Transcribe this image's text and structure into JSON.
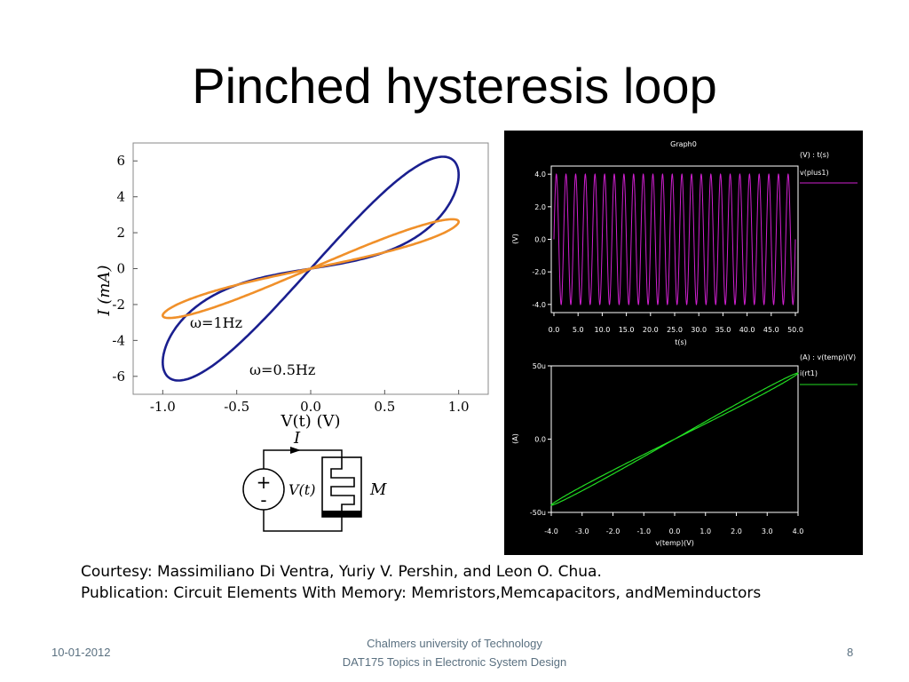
{
  "slide": {
    "title": "Pinched hysteresis loop",
    "courtesy_line1": "Courtesy: Massimiliano Di Ventra, Yuriy V. Pershin, and Leon O. Chua.",
    "courtesy_line2": "Publication: Circuit Elements With Memory: Memristors,Memcapacitors, andMeminductors",
    "footer_date": "10-01-2012",
    "footer_line1": "Chalmers university of Technology",
    "footer_line2": "DAT175 Topics in Electronic System Design",
    "page_number": "8"
  },
  "chart_data": [
    {
      "type": "line",
      "xlabel": "V(t) (V)",
      "ylabel": "I (mA)",
      "xlim": [
        -1.2,
        1.2
      ],
      "ylim": [
        -7,
        7
      ],
      "x_ticks": [
        "-1.0",
        "-0.5",
        "0.0",
        "0.5",
        "1.0"
      ],
      "y_ticks": [
        "6",
        "4",
        "2",
        "0",
        "-2",
        "-4",
        "-6"
      ],
      "series": [
        {
          "name": "ω=0.5Hz",
          "color": "#1a1f8f",
          "amplitude_V": 1.0,
          "peak_current_mA": 5.8
        },
        {
          "name": "ω=1Hz",
          "color": "#f0902a",
          "amplitude_V": 1.0,
          "peak_current_mA": 2.9
        }
      ],
      "annotations": [
        "ω=1Hz",
        "ω=0.5Hz"
      ]
    },
    {
      "type": "diagram",
      "labels": {
        "current": "I",
        "source": "V(t)",
        "element": "M",
        "plus": "+",
        "minus": "-"
      }
    },
    {
      "type": "line",
      "title": "Graph0",
      "legend_header": "(V) : t(s)",
      "legend_entry": "v(plus1)",
      "xlabel": "t(s)",
      "ylabel": "(V)",
      "xlim": [
        0,
        50
      ],
      "ylim": [
        -4.5,
        4.5
      ],
      "x_ticks": [
        "0.0",
        "5.0",
        "10.0",
        "15.0",
        "20.0",
        "25.0",
        "30.0",
        "35.0",
        "40.0",
        "45.0",
        "50.0"
      ],
      "y_ticks": [
        "4.0",
        "2.0",
        "0.0",
        "-2.0",
        "-4.0"
      ],
      "series": [
        {
          "name": "v(plus1)",
          "color": "#d020d0",
          "amplitude": 4.0,
          "cycles": 25
        }
      ]
    },
    {
      "type": "line",
      "legend_header": "(A) : v(temp)(V)",
      "legend_entry": "i(rt1)",
      "xlabel": "v(temp)(V)",
      "ylabel": "(A)",
      "xlim": [
        -4,
        4
      ],
      "ylim": [
        -50,
        50
      ],
      "x_ticks": [
        "-4.0",
        "-3.0",
        "-2.0",
        "-1.0",
        "0.0",
        "1.0",
        "2.0",
        "3.0",
        "4.0"
      ],
      "y_ticks": [
        "50u",
        "0.0",
        "-50u"
      ],
      "series": [
        {
          "name": "i(rt1)",
          "color": "#22dd22",
          "peak_current_uA": 45
        }
      ]
    }
  ]
}
